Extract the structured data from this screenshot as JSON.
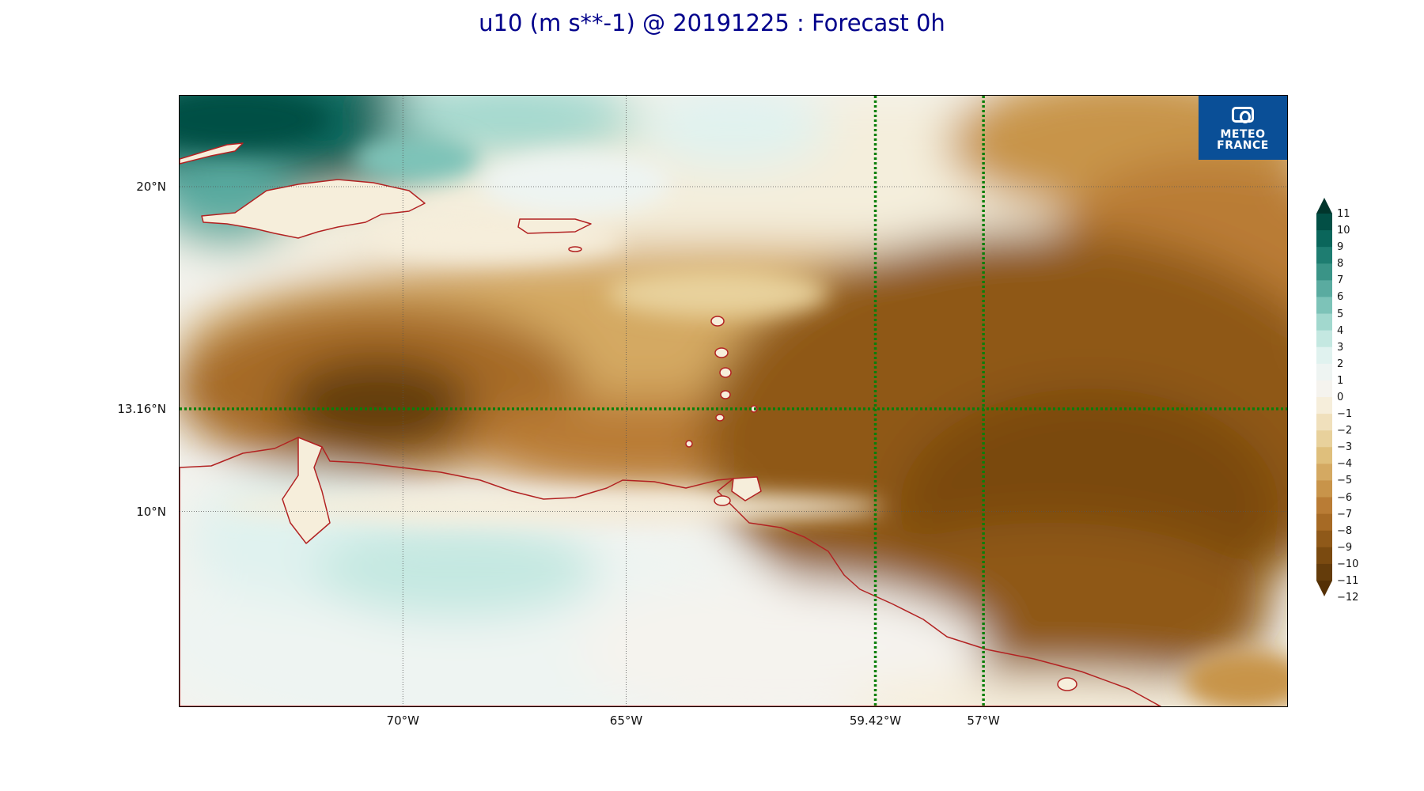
{
  "title": "u10 (m s**-1) @ 20191225 : Forecast 0h",
  "logo": {
    "line1": "METEO",
    "line2": "FRANCE",
    "icon": "meteo-france-logo-icon"
  },
  "map": {
    "variable": "u10",
    "units": "m s**-1",
    "date": "20191225",
    "forecast_hour": 0,
    "lon_range": [
      -75,
      -50.2
    ],
    "lat_range": [
      4,
      22.8
    ],
    "y_tick_labels": [
      {
        "text": "20°N",
        "lat": 20
      },
      {
        "text": "13.16°N",
        "lat": 13.16
      },
      {
        "text": "10°N",
        "lat": 10
      }
    ],
    "x_tick_labels": [
      {
        "text": "70°W",
        "lon": -70
      },
      {
        "text": "65°W",
        "lon": -65
      },
      {
        "text": "59.42°W",
        "lon": -59.42
      },
      {
        "text": "57°W",
        "lon": -57
      }
    ],
    "gridlines": {
      "lons": [
        -70,
        -65
      ],
      "lats": [
        20,
        10
      ],
      "style": "dotted grey"
    },
    "markers": {
      "color": "#0a7f0a",
      "style": "dotted",
      "lat_lines": [
        13.16
      ],
      "lon_lines": [
        -59.42,
        -57
      ]
    },
    "coastline_color": "#b22222"
  },
  "colorbar": {
    "labels": [
      "11",
      "10",
      "9",
      "8",
      "7",
      "6",
      "5",
      "4",
      "3",
      "2",
      "1",
      "0",
      "−1",
      "−2",
      "−3",
      "−4",
      "−5",
      "−6",
      "−7",
      "−8",
      "−9",
      "−10",
      "−11",
      "−12"
    ],
    "colors": [
      "#01352c",
      "#024f45",
      "#0a665b",
      "#1e7d71",
      "#3a9487",
      "#5aaba0",
      "#7dc3b8",
      "#a2d8ce",
      "#c4e8e1",
      "#e0f2ef",
      "#eef4f2",
      "#f5f3ee",
      "#f6eedb",
      "#f0e0bc",
      "#e8d19c",
      "#dfbf7c",
      "#d4a962",
      "#c8944a",
      "#b97c35",
      "#a66a25",
      "#8f5919",
      "#7a4a10",
      "#643c0b",
      "#543005"
    ],
    "extend": "both"
  }
}
